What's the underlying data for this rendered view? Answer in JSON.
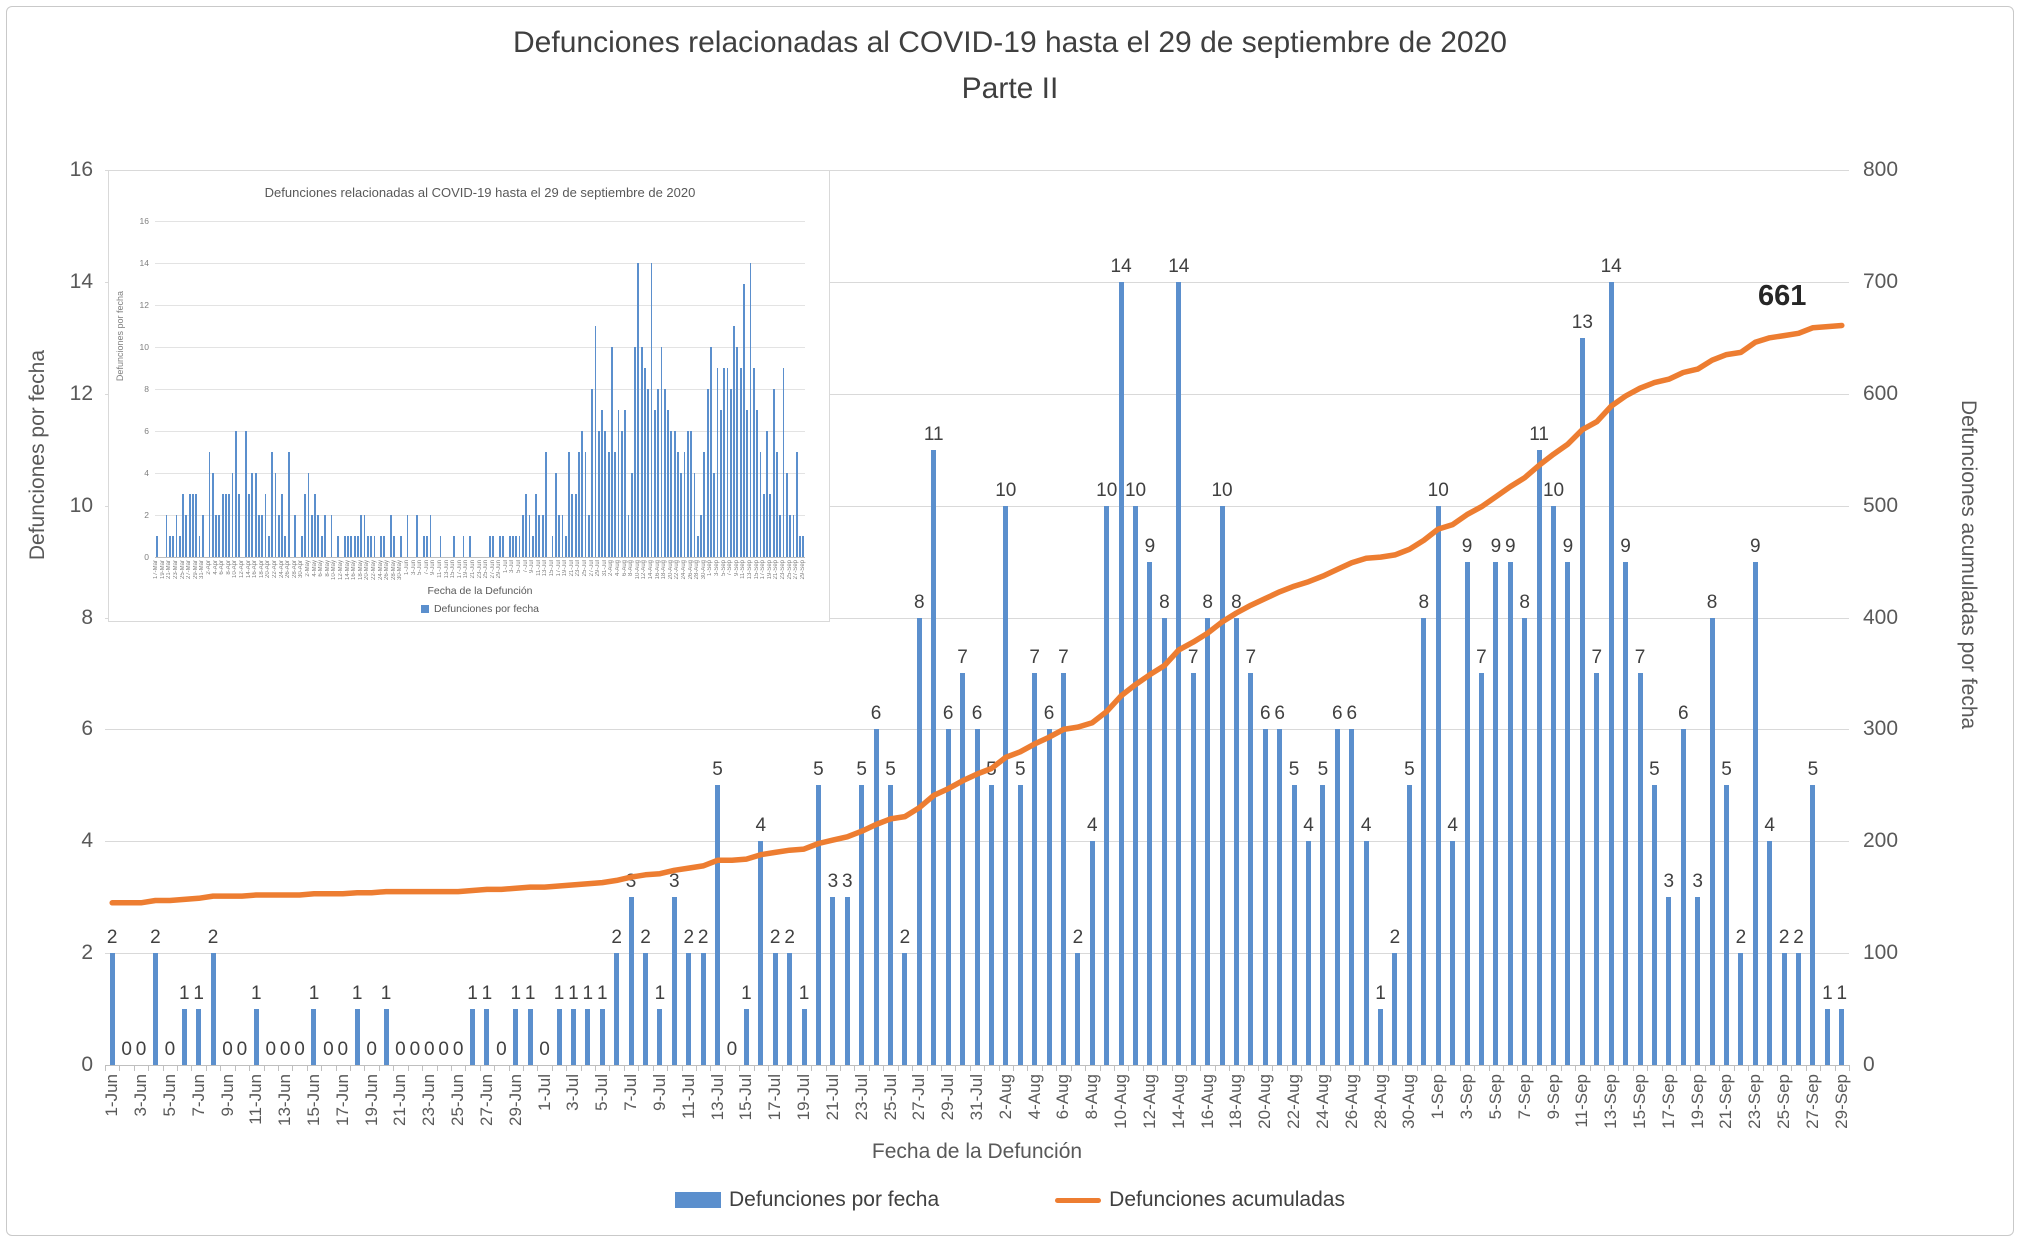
{
  "title": {
    "line1": "Defunciones relacionadas al COVID-19 hasta el 29 de septiembre de 2020",
    "line2": "Parte II"
  },
  "legend": {
    "bars": "Defunciones por fecha",
    "line": "Defunciones acumuladas"
  },
  "colors": {
    "bar": "#5B8FCD",
    "line": "#ED7D31",
    "grid": "#D9D9D9",
    "axis_line": "#BFBFBF",
    "data_label_text": "#404040",
    "axis_text": "#595959",
    "end_label_text": "#262626"
  },
  "chart_data": [
    {
      "name": "main",
      "type": "bar",
      "title": "Defunciones relacionadas al COVID-19 hasta el 29 de septiembre de 2020 — Parte II",
      "xlabel": "Fecha de la Defunción",
      "ylabel_left": "Defunciones por fecha",
      "ylabel_right": "Defunciones acumuladas por fecha",
      "y_left": {
        "min": 0,
        "max": 16,
        "step": 2
      },
      "y_right": {
        "min": 0,
        "max": 800,
        "step": 100
      },
      "grid": true,
      "legend_position": "bottom",
      "x_tick_every": 2,
      "categories": [
        "1-Jun",
        "2-Jun",
        "3-Jun",
        "4-Jun",
        "5-Jun",
        "6-Jun",
        "7-Jun",
        "8-Jun",
        "9-Jun",
        "10-Jun",
        "11-Jun",
        "12-Jun",
        "13-Jun",
        "14-Jun",
        "15-Jun",
        "16-Jun",
        "17-Jun",
        "18-Jun",
        "19-Jun",
        "20-Jun",
        "21-Jun",
        "22-Jun",
        "23-Jun",
        "24-Jun",
        "25-Jun",
        "26-Jun",
        "27-Jun",
        "28-Jun",
        "29-Jun",
        "30-Jun",
        "1-Jul",
        "2-Jul",
        "3-Jul",
        "4-Jul",
        "5-Jul",
        "6-Jul",
        "7-Jul",
        "8-Jul",
        "9-Jul",
        "10-Jul",
        "11-Jul",
        "12-Jul",
        "13-Jul",
        "14-Jul",
        "15-Jul",
        "16-Jul",
        "17-Jul",
        "18-Jul",
        "19-Jul",
        "20-Jul",
        "21-Jul",
        "22-Jul",
        "23-Jul",
        "24-Jul",
        "25-Jul",
        "26-Jul",
        "27-Jul",
        "28-Jul",
        "29-Jul",
        "30-Jul",
        "31-Jul",
        "1-Aug",
        "2-Aug",
        "3-Aug",
        "4-Aug",
        "5-Aug",
        "6-Aug",
        "7-Aug",
        "8-Aug",
        "9-Aug",
        "10-Aug",
        "11-Aug",
        "12-Aug",
        "13-Aug",
        "14-Aug",
        "15-Aug",
        "16-Aug",
        "17-Aug",
        "18-Aug",
        "19-Aug",
        "20-Aug",
        "21-Aug",
        "22-Aug",
        "23-Aug",
        "24-Aug",
        "25-Aug",
        "26-Aug",
        "27-Aug",
        "28-Aug",
        "29-Aug",
        "30-Aug",
        "31-Aug",
        "1-Sep",
        "2-Sep",
        "3-Sep",
        "4-Sep",
        "5-Sep",
        "6-Sep",
        "7-Sep",
        "8-Sep",
        "9-Sep",
        "10-Sep",
        "11-Sep",
        "12-Sep",
        "13-Sep",
        "14-Sep",
        "15-Sep",
        "16-Sep",
        "17-Sep",
        "18-Sep",
        "19-Sep",
        "20-Sep",
        "21-Sep",
        "22-Sep",
        "23-Sep",
        "24-Sep",
        "25-Sep",
        "26-Sep",
        "27-Sep",
        "28-Sep",
        "29-Sep"
      ],
      "series": [
        {
          "name": "Defunciones por fecha",
          "type": "bar",
          "axis": "left",
          "data_labels": true,
          "values": [
            2,
            0,
            0,
            2,
            0,
            1,
            1,
            2,
            0,
            0,
            1,
            0,
            0,
            0,
            1,
            0,
            0,
            1,
            0,
            1,
            0,
            0,
            0,
            0,
            0,
            1,
            1,
            0,
            1,
            1,
            0,
            1,
            1,
            1,
            1,
            2,
            3,
            2,
            1,
            3,
            2,
            2,
            5,
            0,
            1,
            4,
            2,
            2,
            1,
            5,
            3,
            3,
            5,
            6,
            5,
            2,
            8,
            11,
            6,
            7,
            6,
            5,
            10,
            5,
            7,
            6,
            7,
            2,
            4,
            10,
            14,
            10,
            9,
            8,
            14,
            7,
            8,
            10,
            8,
            7,
            6,
            6,
            5,
            4,
            5,
            6,
            6,
            4,
            1,
            2,
            5,
            8,
            10,
            4,
            9,
            7,
            9,
            9,
            8,
            11,
            10,
            9,
            13,
            7,
            14,
            9,
            7,
            5,
            3,
            6,
            3,
            8,
            5,
            2,
            9,
            4,
            2,
            2,
            5,
            1,
            1
          ]
        },
        {
          "name": "Defunciones acumuladas",
          "type": "line",
          "axis": "right",
          "end_label": "661",
          "values": [
            145,
            145,
            145,
            147,
            147,
            148,
            149,
            151,
            151,
            151,
            152,
            152,
            152,
            152,
            153,
            153,
            153,
            154,
            154,
            155,
            155,
            155,
            155,
            155,
            155,
            156,
            157,
            157,
            158,
            159,
            159,
            160,
            161,
            162,
            163,
            165,
            168,
            170,
            171,
            174,
            176,
            178,
            183,
            183,
            184,
            188,
            190,
            192,
            193,
            198,
            201,
            204,
            209,
            215,
            220,
            222,
            230,
            241,
            247,
            254,
            260,
            265,
            275,
            280,
            287,
            293,
            300,
            302,
            306,
            316,
            330,
            340,
            349,
            357,
            371,
            378,
            386,
            396,
            404,
            411,
            417,
            423,
            428,
            432,
            437,
            443,
            449,
            453,
            454,
            456,
            461,
            469,
            479,
            483,
            492,
            499,
            508,
            517,
            525,
            536,
            546,
            555,
            568,
            575,
            589,
            598,
            605,
            610,
            613,
            619,
            622,
            630,
            635,
            637,
            646,
            650,
            652,
            654,
            659,
            660,
            661
          ]
        }
      ]
    },
    {
      "name": "inset",
      "type": "bar",
      "title": "Defunciones relacionadas al COVID-19 hasta el 29 de septiembre de 2020",
      "xlabel": "Fecha de la Defunción",
      "ylabel": "Defunciones por fecha",
      "legend_label": "Defunciones por fecha",
      "y": {
        "min": 0,
        "max": 16,
        "step": 2
      },
      "x_tick_every": 2,
      "continues_with": "main series 'Defunciones por fecha' (1-Jun through 29-Sep)",
      "categories_pre": [
        "17-Mar",
        "18-Mar",
        "19-Mar",
        "20-Mar",
        "21-Mar",
        "22-Mar",
        "23-Mar",
        "24-Mar",
        "25-Mar",
        "26-Mar",
        "27-Mar",
        "28-Mar",
        "29-Mar",
        "30-Mar",
        "31-Mar",
        "1-Apr",
        "2-Apr",
        "3-Apr",
        "4-Apr",
        "5-Apr",
        "6-Apr",
        "7-Apr",
        "8-Apr",
        "9-Apr",
        "10-Apr",
        "11-Apr",
        "12-Apr",
        "13-Apr",
        "14-Apr",
        "15-Apr",
        "16-Apr",
        "17-Apr",
        "18-Apr",
        "19-Apr",
        "20-Apr",
        "21-Apr",
        "22-Apr",
        "23-Apr",
        "24-Apr",
        "25-Apr",
        "26-Apr",
        "27-Apr",
        "28-Apr",
        "29-Apr",
        "30-Apr",
        "1-May",
        "2-May",
        "3-May",
        "4-May",
        "5-May",
        "6-May",
        "7-May",
        "8-May",
        "9-May",
        "10-May",
        "11-May",
        "12-May",
        "13-May",
        "14-May",
        "15-May",
        "16-May",
        "17-May",
        "18-May",
        "19-May",
        "20-May",
        "21-May",
        "22-May",
        "23-May",
        "24-May",
        "25-May",
        "26-May",
        "27-May",
        "28-May",
        "29-May",
        "30-May",
        "31-May"
      ],
      "values_pre": [
        1,
        0,
        0,
        2,
        1,
        1,
        2,
        1,
        3,
        2,
        3,
        3,
        3,
        1,
        2,
        0,
        5,
        4,
        2,
        2,
        3,
        3,
        3,
        4,
        6,
        3,
        0,
        6,
        3,
        4,
        4,
        2,
        2,
        3,
        1,
        5,
        4,
        2,
        3,
        1,
        5,
        0,
        2,
        0,
        1,
        3,
        4,
        2,
        3,
        2,
        1,
        2,
        0,
        2,
        0,
        1,
        0,
        1,
        1,
        1,
        1,
        1,
        2,
        2,
        1,
        1,
        1,
        0,
        1,
        1,
        0,
        2,
        1,
        0,
        1,
        0
      ]
    }
  ]
}
